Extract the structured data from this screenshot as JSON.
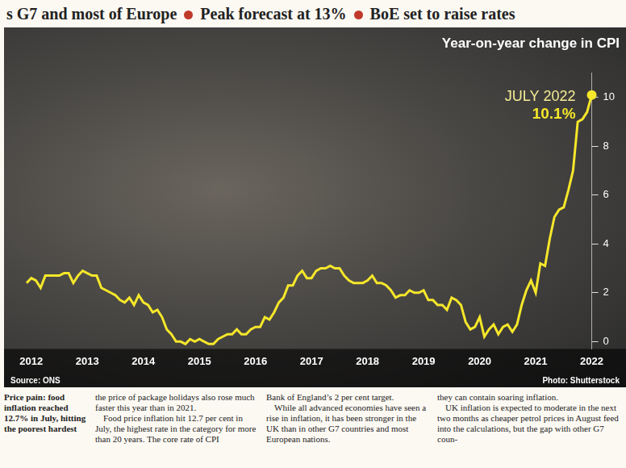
{
  "header": {
    "items": [
      "s G7 and most of Europe",
      "Peak forecast at 13%",
      "BoE set to raise rates"
    ]
  },
  "chart_data": {
    "type": "line",
    "title": "Year-on-year change in CPI",
    "categories": [
      null,
      "2012",
      null,
      null,
      null,
      null,
      null,
      null,
      null,
      null,
      null,
      null,
      null,
      "2013",
      null,
      null,
      null,
      null,
      null,
      null,
      null,
      null,
      null,
      null,
      null,
      "2014",
      null,
      null,
      null,
      null,
      null,
      null,
      null,
      null,
      null,
      null,
      null,
      "2015",
      null,
      null,
      null,
      null,
      null,
      null,
      null,
      null,
      null,
      null,
      null,
      "2016",
      null,
      null,
      null,
      null,
      null,
      null,
      null,
      null,
      null,
      null,
      null,
      "2017",
      null,
      null,
      null,
      null,
      null,
      null,
      null,
      null,
      null,
      null,
      null,
      "2018",
      null,
      null,
      null,
      null,
      null,
      null,
      null,
      null,
      null,
      null,
      null,
      "2019",
      null,
      null,
      null,
      null,
      null,
      null,
      null,
      null,
      null,
      null,
      null,
      "2020",
      null,
      null,
      null,
      null,
      null,
      null,
      null,
      null,
      null,
      null,
      null,
      "2021",
      null,
      null,
      null,
      null,
      null,
      null,
      null,
      null,
      null,
      null,
      null,
      "2022"
    ],
    "values": [
      2.4,
      2.6,
      2.5,
      2.2,
      2.7,
      2.7,
      2.7,
      2.7,
      2.8,
      2.8,
      2.4,
      2.7,
      2.9,
      2.8,
      2.7,
      2.7,
      2.2,
      2.1,
      2.0,
      1.9,
      1.7,
      1.6,
      1.8,
      1.5,
      1.9,
      1.6,
      1.5,
      1.2,
      1.3,
      1.0,
      0.5,
      0.3,
      0.0,
      0.0,
      -0.1,
      0.1,
      0.0,
      0.1,
      0.0,
      -0.1,
      -0.1,
      0.1,
      0.2,
      0.3,
      0.3,
      0.5,
      0.3,
      0.3,
      0.5,
      0.6,
      0.6,
      1.0,
      0.9,
      1.2,
      1.6,
      1.8,
      2.3,
      2.3,
      2.7,
      2.9,
      2.6,
      2.6,
      2.9,
      3.0,
      3.0,
      3.1,
      3.0,
      3.0,
      2.7,
      2.5,
      2.4,
      2.4,
      2.4,
      2.5,
      2.7,
      2.4,
      2.4,
      2.3,
      2.1,
      1.8,
      1.9,
      1.9,
      2.1,
      2.0,
      2.0,
      2.1,
      1.7,
      1.7,
      1.5,
      1.5,
      1.3,
      1.8,
      1.7,
      1.5,
      0.8,
      0.5,
      0.6,
      1.0,
      0.2,
      0.5,
      0.7,
      0.3,
      0.6,
      0.7,
      0.4,
      0.7,
      1.5,
      2.1,
      2.5,
      2.0,
      3.2,
      3.1,
      4.2,
      5.1,
      5.4,
      5.5,
      6.2,
      7.0,
      9.0,
      9.1,
      9.4,
      10.1
    ],
    "color": "#f5e72a",
    "ylim": [
      -0.3,
      11
    ],
    "yticks": [
      0,
      2,
      4,
      6,
      8,
      10
    ],
    "grid": false,
    "annotations": [
      {
        "text": "JULY 2022",
        "value": 10.1,
        "label": "10.1%"
      }
    ],
    "source": "Source: ONS",
    "credit": "Photo: Shutterstock"
  },
  "columns": [
    {
      "caption": "Price pain: food inflation reached 12.7% in July, hitting the poorest hardest"
    },
    {
      "paragraphs": [
        "the price of package holidays also rose much faster this year than in 2021.",
        "Food price inflation hit 12.7 per cent in July, the highest rate in the category for more than 20 years. The core rate of CPI"
      ]
    },
    {
      "paragraphs": [
        "Bank of England’s 2 per cent target.",
        "While all advanced economies have seen a rise in inflation, it has been stronger in the UK than in other G7 countries and most European nations."
      ]
    },
    {
      "paragraphs": [
        "they can contain soaring inflation.",
        "UK inflation is expected to moderate in the next two months as cheaper petrol prices in August feed into the calculations, but the gap with other G7 coun-"
      ]
    }
  ]
}
